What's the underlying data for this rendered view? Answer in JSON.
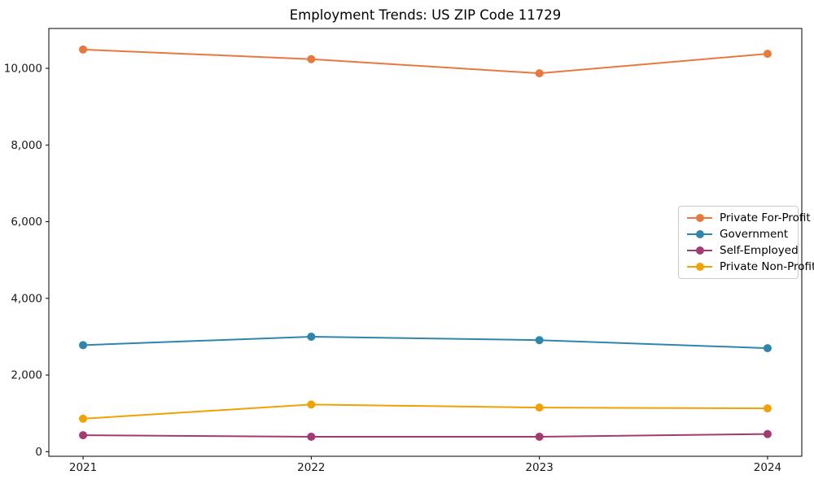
{
  "chart_data": {
    "type": "line",
    "title": "Employment Trends: US ZIP Code 11729",
    "xlabel": "",
    "ylabel": "",
    "x": [
      2021,
      2022,
      2023,
      2024
    ],
    "x_tick_labels": [
      "2021",
      "2022",
      "2023",
      "2024"
    ],
    "y_ticks": [
      0,
      2000,
      4000,
      6000,
      8000,
      10000
    ],
    "y_tick_labels": [
      "0",
      "2,000",
      "4,000",
      "6,000",
      "8,000",
      "10,000"
    ],
    "xlim": [
      2020.85,
      2024.15
    ],
    "ylim": [
      -120,
      11040
    ],
    "grid": false,
    "legend_position": "center right",
    "series": [
      {
        "name": "Private For-Profit",
        "color": "#e8793d",
        "values": [
          10490,
          10240,
          9870,
          10380
        ]
      },
      {
        "name": "Government",
        "color": "#2e86ab",
        "values": [
          2780,
          3000,
          2910,
          2700
        ]
      },
      {
        "name": "Self-Employed",
        "color": "#a23b72",
        "values": [
          430,
          390,
          390,
          460
        ]
      },
      {
        "name": "Private Non-Profit",
        "color": "#f0a202",
        "values": [
          860,
          1230,
          1150,
          1130
        ]
      }
    ]
  }
}
